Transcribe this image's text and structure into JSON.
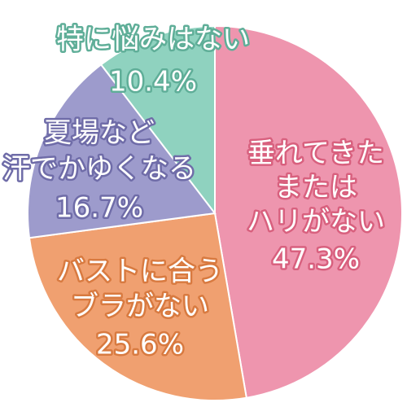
{
  "chart_data": {
    "type": "pie",
    "categories": [
      [
        "垂れてきた",
        "または",
        "ハリがない"
      ],
      [
        "バストに合う",
        "ブラがない"
      ],
      [
        "夏場など",
        "汗でかゆくなる"
      ],
      [
        "特に悩みはない"
      ]
    ],
    "values": [
      47.3,
      25.6,
      16.7,
      10.4
    ],
    "value_labels": [
      "47.3%",
      "25.6%",
      "16.7%",
      "10.4%"
    ],
    "colors": [
      "#ee95ae",
      "#f0a070",
      "#9d9bcc",
      "#8fd2bf"
    ]
  }
}
